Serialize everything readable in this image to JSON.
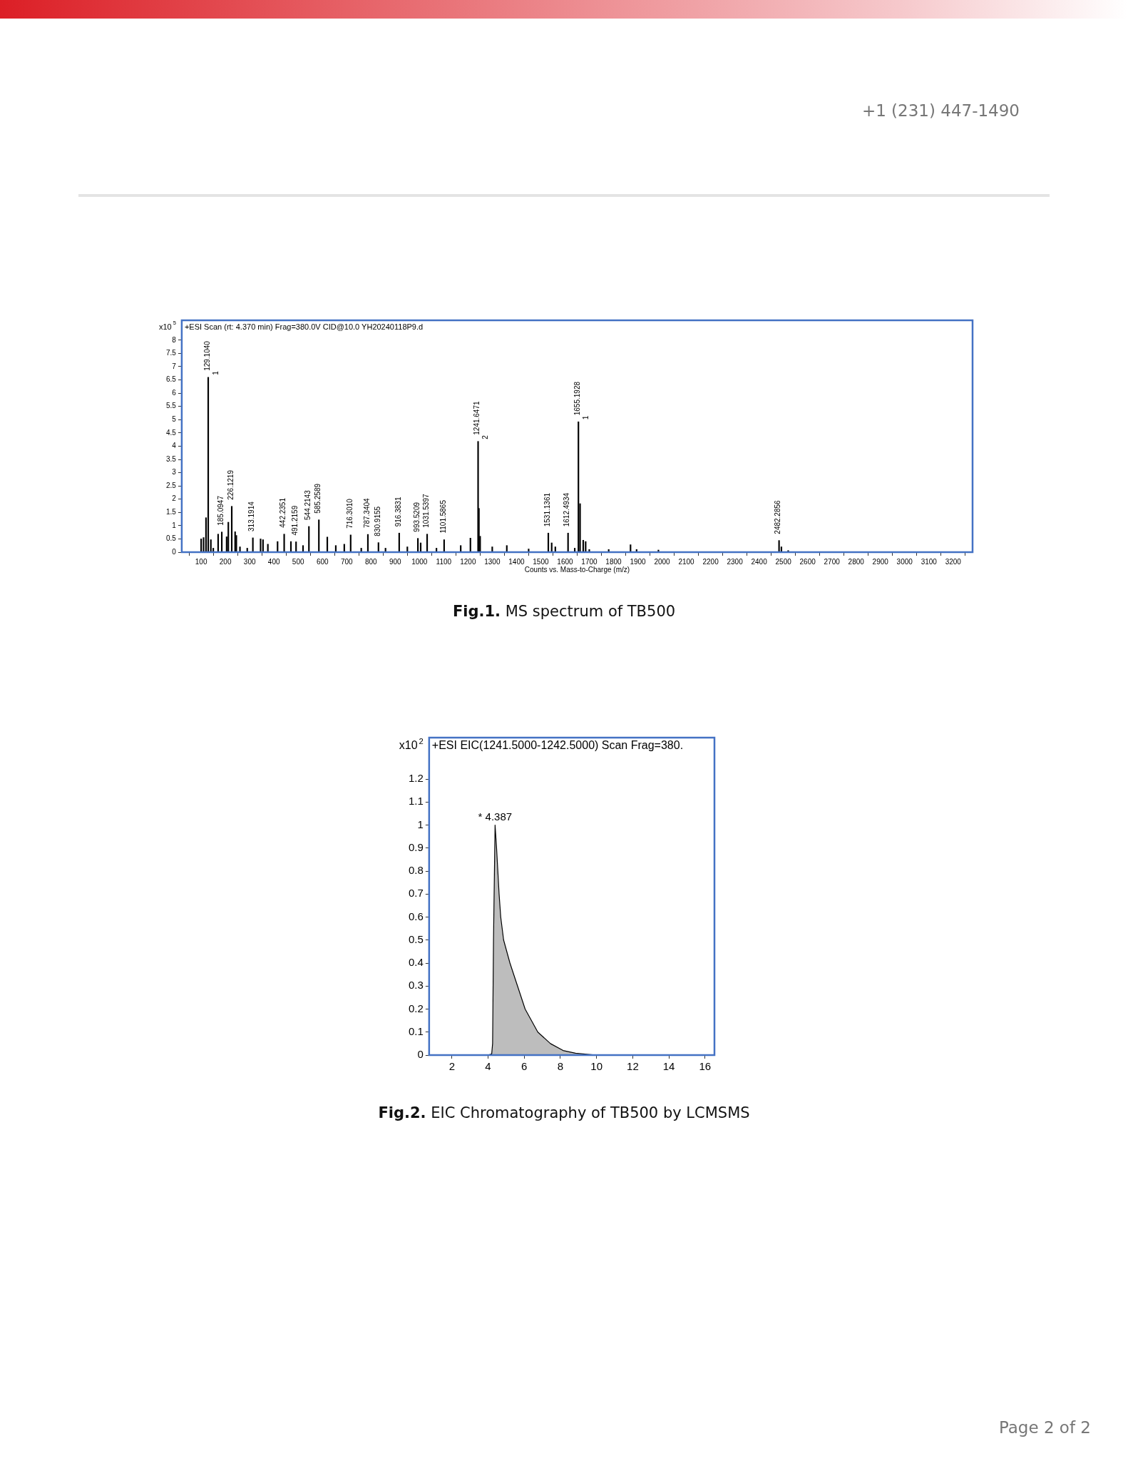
{
  "chart_data": [
    {
      "type": "bar",
      "title": "+ESI Scan (rt: 4.370 min) Frag=380.0V CID@10.0 YH20240118P9.d",
      "xlabel": "Counts vs. Mass-to-Charge (m/z)",
      "ylabel": "x10$^{5}$",
      "x": [
        100,
        110,
        120,
        129.104,
        140,
        150,
        170,
        185.0947,
        205,
        212,
        226.1219,
        240,
        245,
        260,
        290,
        313.1914,
        345,
        355,
        375,
        415,
        442.2351,
        470,
        491.2159,
        520,
        544.2143,
        585.2589,
        620,
        655,
        690,
        716.301,
        760,
        787.3404,
        830.9155,
        860,
        916.3831,
        950,
        993.5209,
        1005,
        1031.5397,
        1070,
        1101.5865,
        1170,
        1210,
        1241.6471,
        1245,
        1250,
        1300,
        1360,
        1450,
        1531.1361,
        1545,
        1560,
        1612.4934,
        1640,
        1655.1928,
        1662,
        1675,
        1685,
        1700,
        1780,
        1870,
        1895,
        1985,
        2482.2856,
        2492,
        2520
      ],
      "values": [
        0.5,
        0.55,
        1.3,
        6.6,
        0.47,
        0.15,
        0.68,
        0.76,
        0.58,
        1.13,
        1.73,
        0.77,
        0.63,
        0.2,
        0.15,
        0.54,
        0.5,
        0.47,
        0.3,
        0.4,
        0.68,
        0.4,
        0.39,
        0.25,
        0.97,
        1.22,
        0.57,
        0.25,
        0.3,
        0.65,
        0.15,
        0.67,
        0.36,
        0.15,
        0.72,
        0.2,
        0.52,
        0.35,
        0.68,
        0.15,
        0.47,
        0.25,
        0.53,
        4.18,
        1.65,
        0.6,
        0.2,
        0.25,
        0.12,
        0.72,
        0.35,
        0.2,
        0.72,
        0.15,
        4.92,
        1.83,
        0.45,
        0.4,
        0.1,
        0.1,
        0.28,
        0.1,
        0.08,
        0.44,
        0.2,
        0.06
      ],
      "color": "#000000",
      "xlim": [
        20,
        3280
      ],
      "xticks": [
        100,
        200,
        300,
        400,
        500,
        600,
        700,
        800,
        900,
        1000,
        1100,
        1200,
        1300,
        1400,
        1500,
        1600,
        1700,
        1800,
        1900,
        2000,
        2100,
        2200,
        2300,
        2400,
        2500,
        2600,
        2700,
        2800,
        2900,
        3000,
        3100,
        3200
      ],
      "ylim": [
        0,
        8.75
      ],
      "yticks": [
        0,
        0.5,
        1,
        1.5,
        2,
        2.5,
        3,
        3.5,
        4,
        4.5,
        5,
        5.5,
        6,
        6.5,
        7,
        7.5,
        8
      ],
      "grid": false,
      "legend": false,
      "annotations": [
        {
          "text": "129.1040",
          "x": 129.104,
          "y": 6.6
        },
        {
          "text": "1",
          "x": 129.104,
          "y": 6.6
        },
        {
          "text": "185.0947",
          "x": 185.0947,
          "y": 0.76
        },
        {
          "text": "226.1219",
          "x": 226.1219,
          "y": 1.73
        },
        {
          "text": "313.1914",
          "x": 313.1914,
          "y": 0.54
        },
        {
          "text": "442.2351",
          "x": 442.2351,
          "y": 0.68
        },
        {
          "text": "491.2159",
          "x": 491.2159,
          "y": 0.39
        },
        {
          "text": "544.2143",
          "x": 544.2143,
          "y": 0.97
        },
        {
          "text": "585.2589",
          "x": 585.2589,
          "y": 1.22
        },
        {
          "text": "716.3010",
          "x": 716.301,
          "y": 0.65
        },
        {
          "text": "787.3404",
          "x": 787.3404,
          "y": 0.67
        },
        {
          "text": "830.9155",
          "x": 830.9155,
          "y": 0.36
        },
        {
          "text": "916.3831",
          "x": 916.3831,
          "y": 0.72
        },
        {
          "text": "993.5209",
          "x": 993.5209,
          "y": 0.52
        },
        {
          "text": "1031.5397",
          "x": 1031.5397,
          "y": 0.68
        },
        {
          "text": "1101.5865",
          "x": 1101.5865,
          "y": 0.47
        },
        {
          "text": "1241.6471",
          "x": 1241.6471,
          "y": 4.18
        },
        {
          "text": "2",
          "x": 1241.6471,
          "y": 4.18
        },
        {
          "text": "1531.1361",
          "x": 1531.1361,
          "y": 0.72
        },
        {
          "text": "1612.4934",
          "x": 1612.4934,
          "y": 0.72
        },
        {
          "text": "1655.1928",
          "x": 1655.1928,
          "y": 4.92
        },
        {
          "text": "1",
          "x": 1655.1928,
          "y": 4.92
        },
        {
          "text": "2482.2856",
          "x": 2482.2856,
          "y": 0.44
        },
        "Fig.1. MS spectrum of TB500"
      ]
    },
    {
      "type": "area",
      "title": "+ESI EIC(1241.5000-1242.5000) Scan Frag=380.",
      "ylabel": "x10$^{2}$",
      "x": [
        0.74,
        4.0,
        4.2,
        4.25,
        4.3,
        4.387,
        4.47,
        4.54,
        4.61,
        4.7,
        4.86,
        5.21,
        5.63,
        6.05,
        6.75,
        7.45,
        8.15,
        8.84,
        10,
        12,
        16.52
      ],
      "values": [
        0,
        0,
        0.005,
        0.05,
        0.5,
        1.0,
        0.9,
        0.8,
        0.7,
        0.6,
        0.5,
        0.4,
        0.3,
        0.2,
        0.1,
        0.05,
        0.02,
        0.008,
        0,
        0,
        0
      ],
      "color": "#bdbdbd",
      "xlim": [
        0.74,
        16.52
      ],
      "xticks": [
        2,
        4,
        6,
        8,
        10,
        12,
        14,
        16
      ],
      "ylim": [
        0,
        1.38
      ],
      "yticks": [
        0,
        0.1,
        0.2,
        0.3,
        0.4,
        0.5,
        0.6,
        0.7,
        0.8,
        0.9,
        1,
        1.1,
        1.2
      ],
      "grid": false,
      "legend": false,
      "marker": "none",
      "annotations": [
        {
          "text": "* 4.387",
          "x": 4.387,
          "y": 1.0
        },
        "Fig.2. EIC Chromatography of TB500 by LCMSMS"
      ]
    },
    {
      "type": "other",
      "annotations": [
        "+1 (231) 447-1490",
        "Page 2 of 2"
      ]
    }
  ]
}
